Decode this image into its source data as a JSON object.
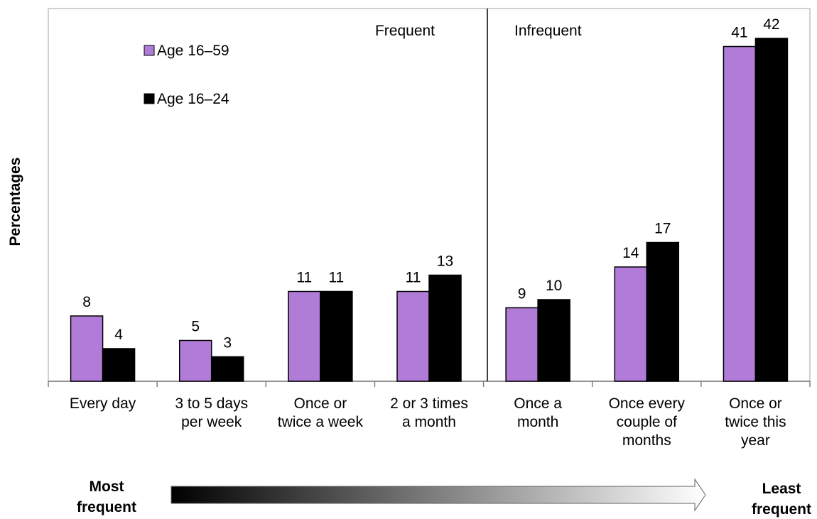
{
  "chart_data": {
    "type": "bar",
    "categories": [
      [
        "Every day"
      ],
      [
        "3 to 5 days",
        "per week"
      ],
      [
        "Once or",
        "twice a week"
      ],
      [
        "2 or 3 times",
        "a month"
      ],
      [
        "Once a",
        "month"
      ],
      [
        "Once every",
        "couple of",
        "months"
      ],
      [
        "Once or",
        "twice this",
        "year"
      ]
    ],
    "series": [
      {
        "name": "Age 16–59",
        "color": "#b07cd8",
        "values": [
          8,
          5,
          11,
          11,
          9,
          14,
          41
        ]
      },
      {
        "name": "Age 16–24",
        "color": "#000000",
        "values": [
          4,
          3,
          11,
          13,
          10,
          17,
          42
        ]
      }
    ],
    "ylabel": "Percentages",
    "ylim": [
      0,
      42
    ],
    "grid": false,
    "legend": "top-left",
    "regions": {
      "left": "Frequent",
      "right": "Infrequent"
    },
    "scale": {
      "left": [
        "Most",
        "frequent"
      ],
      "right": [
        "Least",
        "frequent"
      ]
    }
  }
}
